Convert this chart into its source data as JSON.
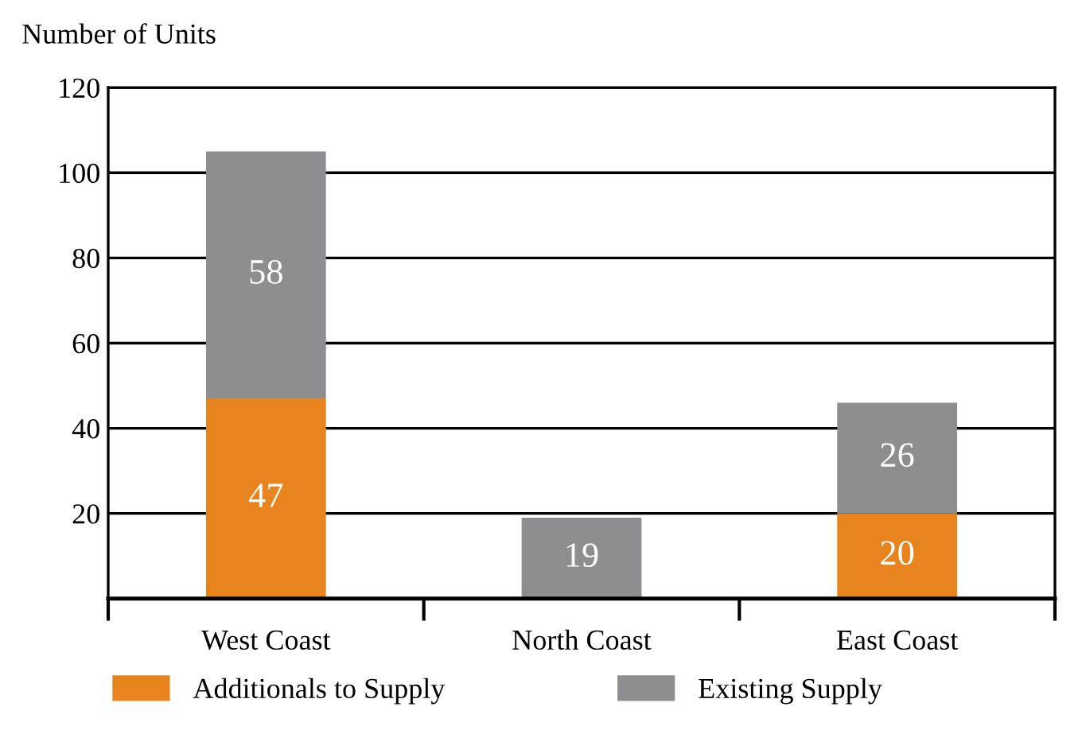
{
  "chart_data": {
    "type": "bar",
    "stacked": true,
    "ylabel": "Number of Units",
    "categories": [
      "West Coast",
      "North Coast",
      "East Coast"
    ],
    "series": [
      {
        "name": "Additionals to Supply",
        "color": "#e8841e",
        "values": [
          47,
          null,
          20
        ],
        "value_labels": [
          "47",
          null,
          "20"
        ]
      },
      {
        "name": "Existing Supply",
        "color": "#8e8e90",
        "values": [
          58,
          19,
          26
        ],
        "value_labels": [
          "58",
          "19",
          "26"
        ]
      }
    ],
    "ylim": [
      0,
      120
    ],
    "yticks": [
      {
        "value": 0,
        "label": null
      },
      20,
      40,
      60,
      80,
      100,
      120
    ],
    "grid": "y",
    "legend": "bottom"
  }
}
